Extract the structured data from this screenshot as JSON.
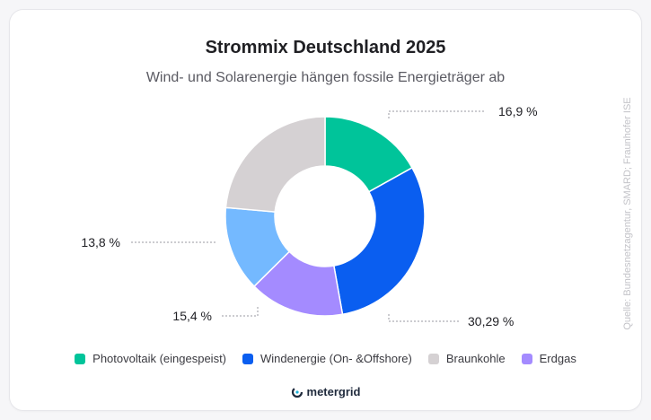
{
  "chart_data": {
    "type": "pie",
    "title": "Strommix Deutschland 2025",
    "subtitle": "Wind- und Solarenergie hängen fossile Energieträger ab",
    "source": "Quelle: Bundesnetzagentur, SMARD; Fraunhofer ISE",
    "donut": true,
    "slices": [
      {
        "name": "Photovoltaik (eingespeist)",
        "value": 16.9,
        "label": "16,9 %",
        "color": "#00c49a",
        "in_legend": true
      },
      {
        "name": "Windenergie (On- &Offshore)",
        "value": 30.29,
        "label": "30,29 %",
        "color": "#0a5ef0",
        "in_legend": true
      },
      {
        "name": "Erdgas",
        "value": 15.4,
        "label": "15,4 %",
        "color": "#a48bff",
        "in_legend": true
      },
      {
        "name": "",
        "value": 13.8,
        "label": "13,8 %",
        "color": "#74b9ff",
        "in_legend": false
      },
      {
        "name": "Braunkohle",
        "value": 23.61,
        "label": "",
        "color": "#d5d1d3",
        "in_legend": true
      }
    ],
    "legend_order": [
      "Photovoltaik (eingespeist)",
      "Windenergie (On- &Offshore)",
      "Braunkohle",
      "Erdgas"
    ],
    "legend_placement": "bottom"
  },
  "brand": {
    "name": "metergrid",
    "icon": "metergrid-logo-icon",
    "color": "#1f2a3c",
    "accent": "#1ab0d6"
  }
}
